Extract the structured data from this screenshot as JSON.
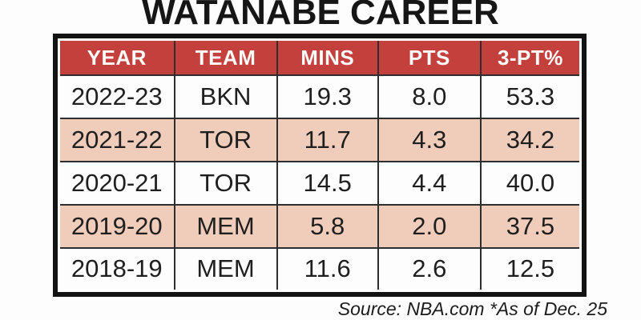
{
  "title": "WATANABE CAREER",
  "table": {
    "columns": [
      "YEAR",
      "TEAM",
      "MINS",
      "PTS",
      "3-PT%"
    ],
    "rows": [
      [
        "2022-23",
        "BKN",
        "19.3",
        "8.0",
        "53.3"
      ],
      [
        "2021-22",
        "TOR",
        "11.7",
        "4.3",
        "34.2"
      ],
      [
        "2020-21",
        "TOR",
        "14.5",
        "4.4",
        "40.0"
      ],
      [
        "2019-20",
        "MEM",
        "5.8",
        "2.0",
        "37.5"
      ],
      [
        "2018-19",
        "MEM",
        "11.6",
        "2.6",
        "12.5"
      ]
    ]
  },
  "footer": {
    "source": "Source: NBA.com *As of Dec. 25"
  },
  "colors": {
    "page_bg": "#fdfdfd",
    "header_bg": "#c3403d",
    "header_text": "#fdfcfb",
    "row_alt_bg": "#f0ccbb",
    "row_bg": "#fdfdfd",
    "frame_border": "#131313",
    "grid_line": "#2e2e2e",
    "text": "#1f1f1f"
  },
  "chart_data": {
    "type": "table",
    "title": "WATANABE CAREER",
    "columns": [
      "YEAR",
      "TEAM",
      "MINS",
      "PTS",
      "3-PT%"
    ],
    "rows": [
      {
        "year": "2022-23",
        "team": "BKN",
        "mins": 19.3,
        "pts": 8.0,
        "three_pt_pct": 53.3
      },
      {
        "year": "2021-22",
        "team": "TOR",
        "mins": 11.7,
        "pts": 4.3,
        "three_pt_pct": 34.2
      },
      {
        "year": "2020-21",
        "team": "TOR",
        "mins": 14.5,
        "pts": 4.4,
        "three_pt_pct": 40.0
      },
      {
        "year": "2019-20",
        "team": "MEM",
        "mins": 5.8,
        "pts": 2.0,
        "three_pt_pct": 37.5
      },
      {
        "year": "2018-19",
        "team": "MEM",
        "mins": 11.6,
        "pts": 2.6,
        "three_pt_pct": 12.5
      }
    ],
    "source_note": "Source: NBA.com *As of Dec. 25"
  }
}
